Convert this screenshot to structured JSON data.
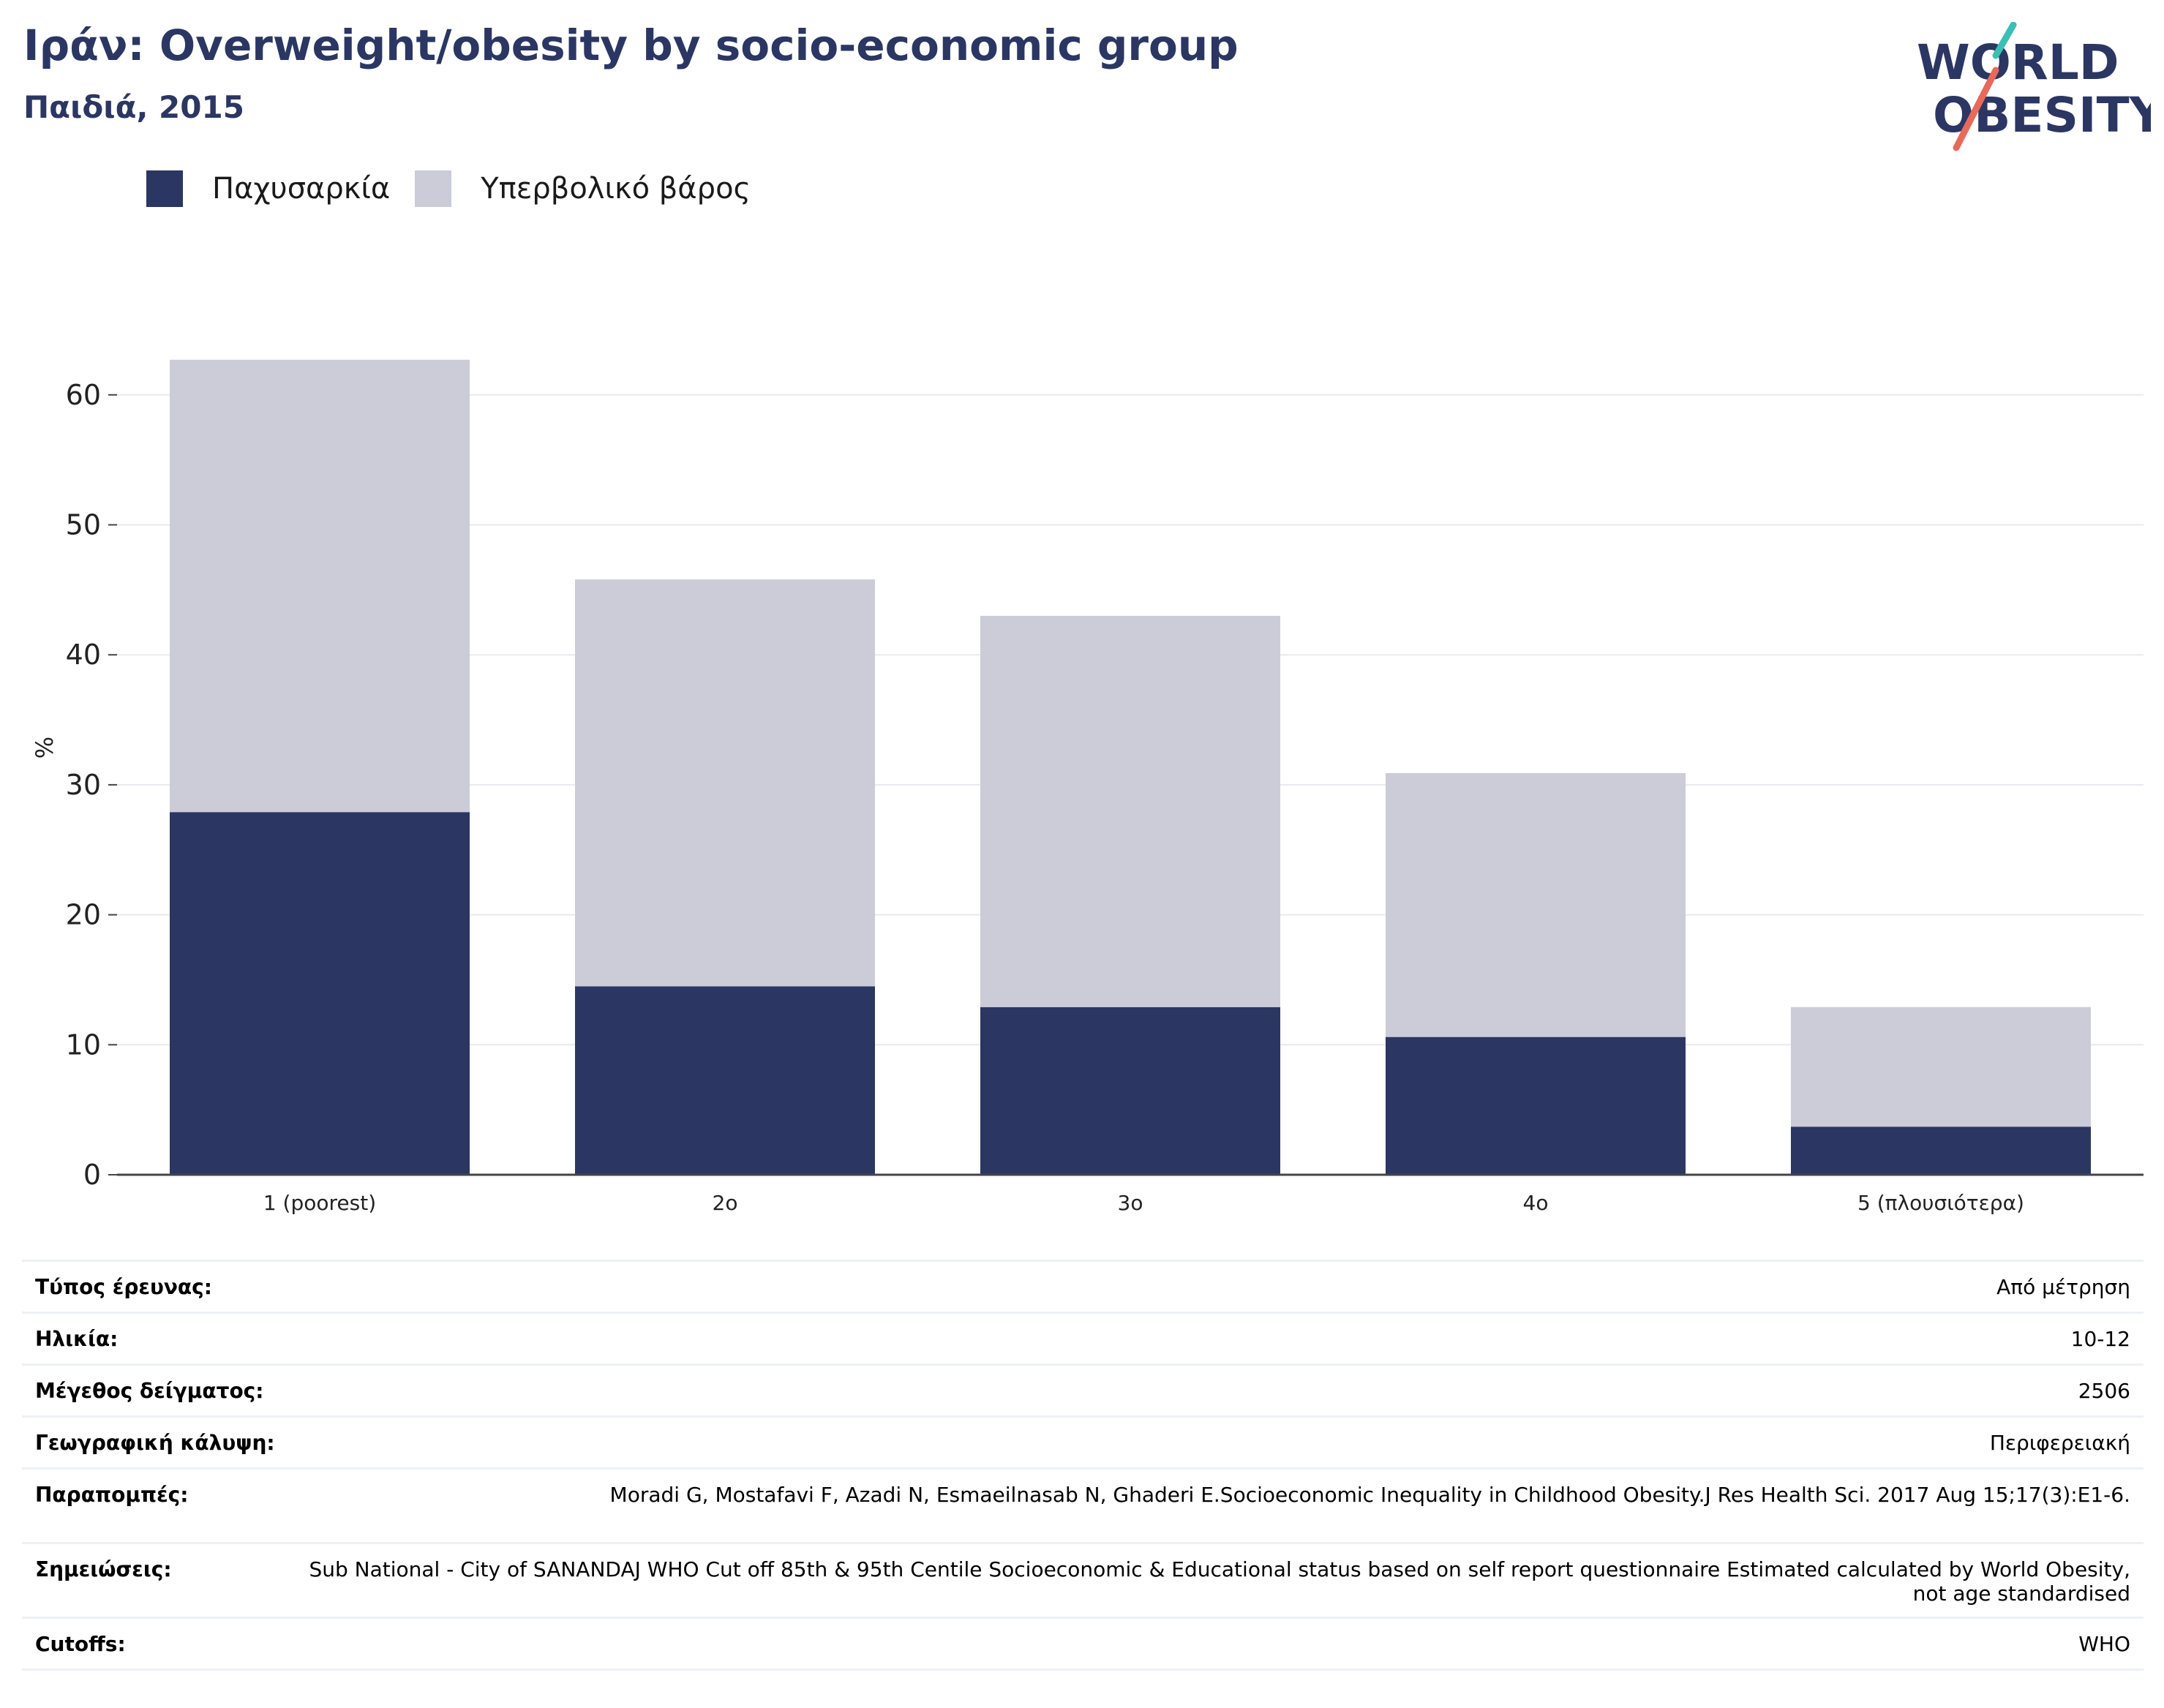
{
  "header": {
    "title": "Ιράν: Overweight/obesity by socio-economic group",
    "subtitle": "Παιδιά, 2015"
  },
  "logo": {
    "line1": "WORLD",
    "line2": "OBESITY",
    "colors": {
      "text": "#2b3663",
      "slash_teal": "#3bbfb4",
      "slash_coral": "#e86a5a"
    }
  },
  "legend": {
    "items": [
      {
        "label": "Παχυσαρκία",
        "color": "#2b3663"
      },
      {
        "label": "Υπερβολικό βάρος",
        "color": "#cbccd8"
      }
    ]
  },
  "chart_data": {
    "type": "bar",
    "stacked": true,
    "categories": [
      "1 (poorest)",
      "2ο",
      "3ο",
      "4ο",
      "5 (πλουσιότερα)"
    ],
    "series": [
      {
        "name": "Παχυσαρκία",
        "color": "#2b3663",
        "values": [
          27.9,
          14.5,
          12.9,
          10.6,
          3.7
        ]
      },
      {
        "name": "Υπερβολικό βάρος",
        "color": "#cbccd8",
        "values": [
          34.8,
          31.3,
          30.1,
          20.3,
          9.2
        ]
      }
    ],
    "ylabel": "%",
    "ylim": [
      0,
      65
    ],
    "yticks": [
      0,
      10,
      20,
      30,
      40,
      50,
      60
    ],
    "grid": true,
    "legend_position": "top-left"
  },
  "info": {
    "rows": [
      {
        "label": "Τύπος έρευνας:",
        "value": "Από μέτρηση"
      },
      {
        "label": "Ηλικία:",
        "value": "10-12"
      },
      {
        "label": "Μέγεθος δείγματος:",
        "value": "2506"
      },
      {
        "label": "Γεωγραφική κάλυψη:",
        "value": "Περιφερειακή"
      },
      {
        "label": "Παραπομπές:",
        "value": "Moradi G, Mostafavi F, Azadi N, Esmaeilnasab N, Ghaderi E.Socioeconomic Inequality in Childhood Obesity.J Res Health Sci. 2017 Aug 15;17(3):E1-6."
      },
      {
        "label": "Σημειώσεις:",
        "value": "Sub National - City of SANANDAJ WHO Cut off 85th & 95th Centile Socioeconomic & Educational status based on self report questionnaire Estimated calculated by World Obesity, not age standardised"
      },
      {
        "label": "Cutoffs:",
        "value": "WHO"
      }
    ]
  }
}
